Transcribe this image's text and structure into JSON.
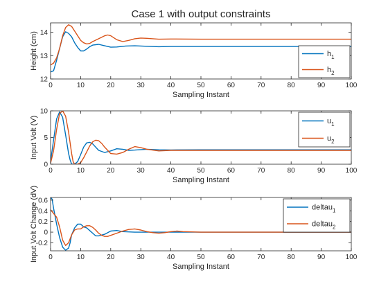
{
  "title": "Case 1 with output constraints",
  "colors": {
    "series1": "#0072BD",
    "series2": "#D95319",
    "axis": "#262626"
  },
  "chart_data": [
    {
      "type": "line",
      "ylabel": "Height (cm)",
      "xlabel": "Sampling Instant",
      "xlim": [
        0,
        100
      ],
      "ylim": [
        12,
        14.4
      ],
      "xticks": [
        0,
        10,
        20,
        30,
        40,
        50,
        60,
        70,
        80,
        90,
        100
      ],
      "yticks": [
        12,
        13,
        14
      ],
      "legend": {
        "position": "bottom-right",
        "entries": [
          {
            "base": "h",
            "sub": "1"
          },
          {
            "base": "h",
            "sub": "2"
          }
        ]
      },
      "series": [
        {
          "name": "h1",
          "x": [
            0,
            1,
            2,
            3,
            4,
            5,
            6,
            7,
            8,
            9,
            10,
            11,
            12,
            13,
            14,
            16,
            18,
            20,
            22,
            25,
            28,
            32,
            36,
            40,
            50,
            60,
            70,
            80,
            90,
            100
          ],
          "y": [
            12.3,
            12.35,
            12.8,
            13.3,
            13.8,
            14.02,
            13.95,
            13.8,
            13.55,
            13.35,
            13.2,
            13.2,
            13.28,
            13.38,
            13.45,
            13.48,
            13.42,
            13.36,
            13.37,
            13.41,
            13.42,
            13.4,
            13.38,
            13.39,
            13.39,
            13.39,
            13.39,
            13.39,
            13.39,
            13.39
          ]
        },
        {
          "name": "h2",
          "x": [
            0,
            1,
            2,
            3,
            4,
            5,
            6,
            7,
            8,
            9,
            10,
            11,
            12,
            13,
            14,
            16,
            18,
            19,
            20,
            22,
            24,
            26,
            28,
            30,
            32,
            36,
            40,
            50,
            60,
            70,
            80,
            90,
            100
          ],
          "y": [
            12.6,
            12.68,
            12.9,
            13.3,
            13.85,
            14.2,
            14.32,
            14.25,
            14.05,
            13.85,
            13.65,
            13.55,
            13.5,
            13.52,
            13.6,
            13.72,
            13.85,
            13.88,
            13.85,
            13.68,
            13.6,
            13.65,
            13.72,
            13.75,
            13.74,
            13.7,
            13.71,
            13.7,
            13.7,
            13.7,
            13.7,
            13.7,
            13.7
          ]
        }
      ]
    },
    {
      "type": "line",
      "ylabel": "Input Volt (V)",
      "xlabel": "Sampling Instant",
      "xlim": [
        0,
        100
      ],
      "ylim": [
        0,
        10
      ],
      "xticks": [
        0,
        10,
        20,
        30,
        40,
        50,
        60,
        70,
        80,
        90,
        100
      ],
      "yticks": [
        0,
        5,
        10
      ],
      "legend": {
        "position": "top-right",
        "entries": [
          {
            "base": "u",
            "sub": "1"
          },
          {
            "base": "u",
            "sub": "2"
          }
        ]
      },
      "series": [
        {
          "name": "u1",
          "x": [
            0,
            1,
            2,
            3,
            4,
            5,
            6,
            6.5,
            7,
            8,
            9,
            10,
            11,
            12,
            13,
            14,
            16,
            18,
            20,
            22,
            24,
            26,
            28,
            32,
            36,
            40,
            50,
            60,
            70,
            80,
            90,
            100
          ],
          "y": [
            0.5,
            4.5,
            8.5,
            9.8,
            8.8,
            5.5,
            2,
            0.8,
            0,
            0,
            0.5,
            1.8,
            3.2,
            4,
            4.1,
            3.8,
            2.6,
            2.2,
            2.5,
            2.9,
            2.8,
            2.6,
            2.65,
            2.8,
            2.7,
            2.68,
            2.7,
            2.7,
            2.7,
            2.7,
            2.7,
            2.7
          ]
        },
        {
          "name": "u2",
          "x": [
            0,
            1,
            2,
            3,
            4,
            5,
            6,
            7,
            7.5,
            8,
            9,
            10,
            11,
            12,
            13,
            14,
            15,
            16,
            17,
            18,
            20,
            22,
            24,
            26,
            28,
            30,
            32,
            36,
            40,
            50,
            60,
            70,
            80,
            90,
            100
          ],
          "y": [
            0.2,
            2.5,
            6.5,
            9.5,
            10,
            9,
            6,
            2,
            0.5,
            0,
            0,
            0.3,
            1.2,
            2.3,
            3.4,
            4.2,
            4.5,
            4.4,
            3.9,
            3.2,
            2,
            1.9,
            2.2,
            2.8,
            3.3,
            3.1,
            2.8,
            2.5,
            2.6,
            2.6,
            2.6,
            2.6,
            2.6,
            2.6,
            2.6
          ]
        }
      ]
    },
    {
      "type": "line",
      "ylabel": "Input Volt Change (dV)",
      "xlabel": "Sampling Instant",
      "xlim": [
        0,
        100
      ],
      "ylim": [
        -0.35,
        0.65
      ],
      "xticks": [
        0,
        10,
        20,
        30,
        40,
        50,
        60,
        70,
        80,
        90,
        100
      ],
      "yticks": [
        -0.2,
        0,
        0.2,
        0.4,
        0.6
      ],
      "legend": {
        "position": "top-right",
        "entries": [
          {
            "base": "deltau",
            "sub": "1"
          },
          {
            "base": "deltau",
            "sub": "2"
          }
        ]
      },
      "series": [
        {
          "name": "deltau1",
          "x": [
            0,
            0.5,
            1,
            2,
            3,
            4,
            5,
            6,
            6.5,
            7,
            8,
            9,
            10,
            11,
            12,
            13,
            14,
            15,
            16,
            18,
            20,
            22,
            24,
            28,
            32,
            36,
            40,
            50,
            60,
            70,
            80,
            90,
            100
          ],
          "y": [
            0.65,
            0.62,
            0.45,
            0.15,
            -0.1,
            -0.28,
            -0.34,
            -0.3,
            -0.2,
            -0.05,
            0.08,
            0.15,
            0.15,
            0.1,
            0.08,
            0.03,
            -0.02,
            -0.07,
            -0.07,
            -0.04,
            0.02,
            0.03,
            0.01,
            0,
            0,
            0,
            0,
            0,
            0,
            0,
            0,
            0,
            0
          ]
        },
        {
          "name": "deltau2",
          "x": [
            0,
            1,
            2,
            3,
            4,
            5,
            6,
            7,
            8,
            9,
            10,
            11,
            12,
            13,
            14,
            15,
            16,
            17,
            18,
            19,
            20,
            22,
            24,
            26,
            28,
            30,
            32,
            34,
            36,
            38,
            40,
            42,
            44,
            50,
            60,
            70,
            80,
            90,
            100
          ],
          "y": [
            0.42,
            0.35,
            0.28,
            0.1,
            -0.15,
            -0.25,
            -0.2,
            -0.05,
            0.04,
            0.06,
            0.06,
            0.1,
            0.12,
            0.12,
            0.09,
            0.04,
            -0.02,
            -0.06,
            -0.08,
            -0.08,
            -0.06,
            -0.02,
            0.02,
            0.05,
            0.06,
            0.04,
            0.01,
            -0.01,
            -0.02,
            -0.01,
            0.01,
            0.02,
            0.01,
            0,
            0,
            0,
            0,
            0,
            0
          ]
        }
      ]
    }
  ]
}
